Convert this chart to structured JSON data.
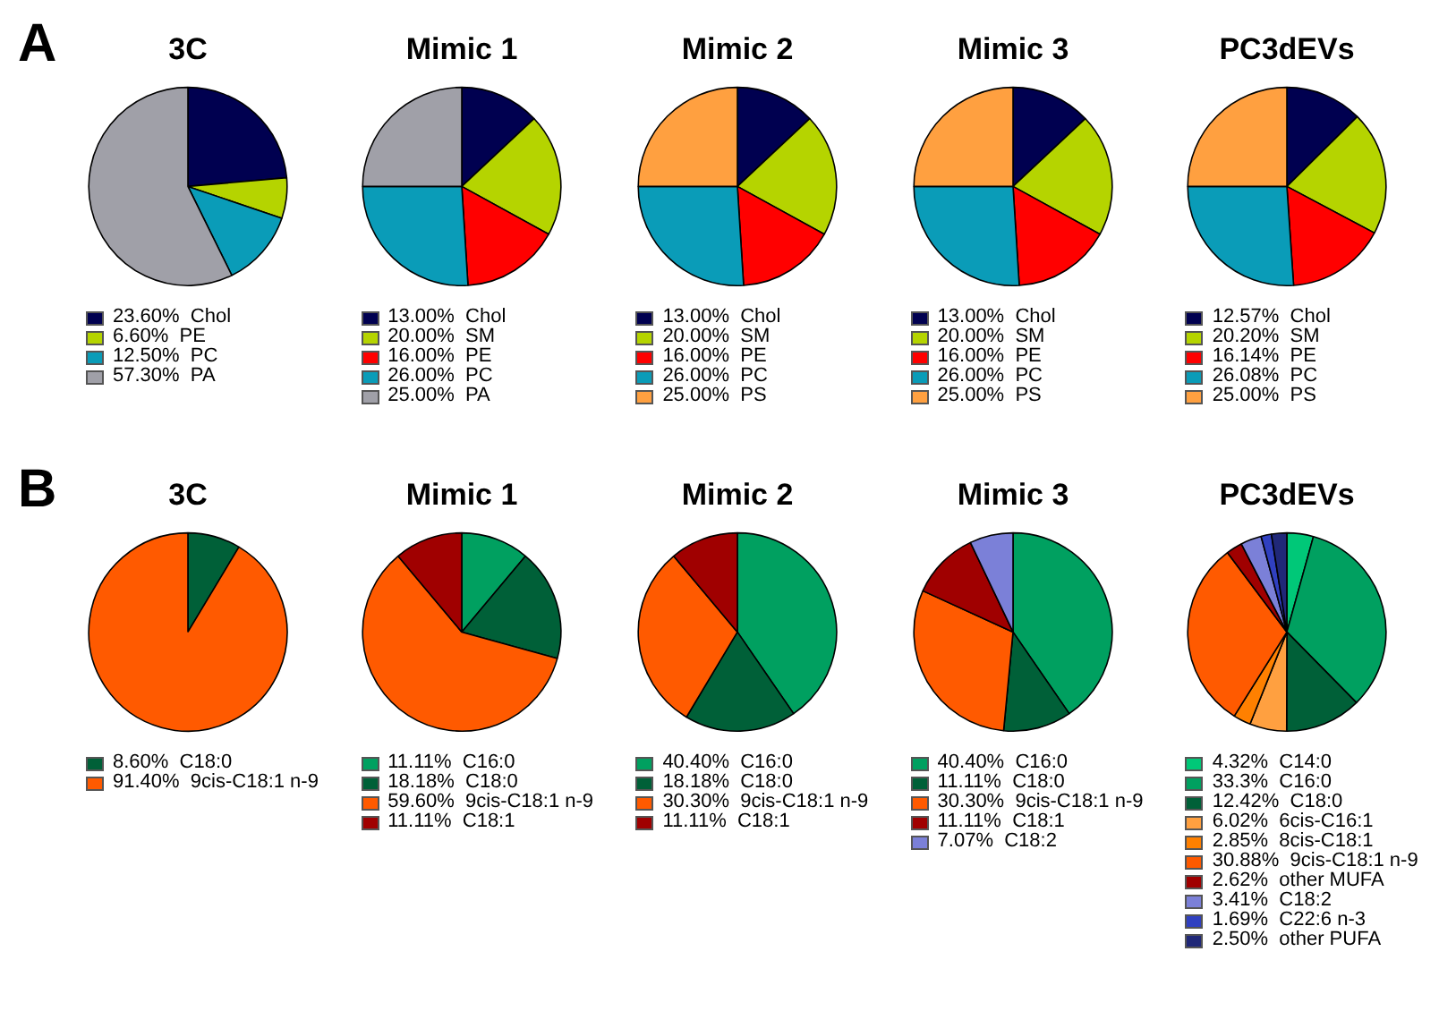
{
  "chart_data": [
    {
      "type": "pie",
      "title": "3C",
      "annotations": [
        "A"
      ],
      "legend": "bottom",
      "categories": [
        "Chol",
        "PE",
        "PC",
        "PA"
      ],
      "values": [
        23.6,
        6.6,
        12.5,
        57.3
      ],
      "value_labels": [
        "23.60%",
        "6.60%",
        "12.50%",
        "57.30%"
      ],
      "colors": [
        "#000050",
        "#b5d400",
        "#0a9cb8",
        "#a0a0a8"
      ]
    },
    {
      "type": "pie",
      "title": "Mimic 1",
      "legend": "bottom",
      "categories": [
        "Chol",
        "SM",
        "PE",
        "PC",
        "PA"
      ],
      "values": [
        13,
        20,
        16,
        26,
        25
      ],
      "value_labels": [
        "13.00%",
        "20.00%",
        "16.00%",
        "26.00%",
        "25.00%"
      ],
      "colors": [
        "#000050",
        "#b5d400",
        "#ff0000",
        "#0a9cb8",
        "#a0a0a8"
      ]
    },
    {
      "type": "pie",
      "title": "Mimic 2",
      "legend": "bottom",
      "categories": [
        "Chol",
        "SM",
        "PE",
        "PC",
        "PS"
      ],
      "values": [
        13,
        20,
        16,
        26,
        25
      ],
      "value_labels": [
        "13.00%",
        "20.00%",
        "16.00%",
        "26.00%",
        "25.00%"
      ],
      "colors": [
        "#000050",
        "#b5d400",
        "#ff0000",
        "#0a9cb8",
        "#ffa040"
      ]
    },
    {
      "type": "pie",
      "title": "Mimic 3",
      "legend": "bottom",
      "categories": [
        "Chol",
        "SM",
        "PE",
        "PC",
        "PS"
      ],
      "values": [
        13,
        20,
        16,
        26,
        25
      ],
      "value_labels": [
        "13.00%",
        "20.00%",
        "16.00%",
        "26.00%",
        "25.00%"
      ],
      "colors": [
        "#000050",
        "#b5d400",
        "#ff0000",
        "#0a9cb8",
        "#ffa040"
      ]
    },
    {
      "type": "pie",
      "title": "PC3dEVs",
      "legend": "bottom",
      "categories": [
        "Chol",
        "SM",
        "PE",
        "PC",
        "PS"
      ],
      "values": [
        12.57,
        20.2,
        16.14,
        26.08,
        25
      ],
      "value_labels": [
        "12.57%",
        "20.20%",
        "16.14%",
        "26.08%",
        "25.00%"
      ],
      "colors": [
        "#000050",
        "#b5d400",
        "#ff0000",
        "#0a9cb8",
        "#ffa040"
      ]
    },
    {
      "type": "pie",
      "title": "3C",
      "annotations": [
        "B"
      ],
      "legend": "bottom",
      "categories": [
        "C18:0",
        "9cis-C18:1 n-9"
      ],
      "values": [
        8.6,
        91.4
      ],
      "value_labels": [
        "8.60%",
        "91.40%"
      ],
      "colors": [
        "#006038",
        "#ff5a00"
      ]
    },
    {
      "type": "pie",
      "title": "Mimic 1",
      "legend": "bottom",
      "categories": [
        "C16:0",
        "C18:0",
        "9cis-C18:1 n-9",
        "C18:1"
      ],
      "values": [
        11.11,
        18.18,
        59.6,
        11.11
      ],
      "value_labels": [
        "11.11%",
        "18.18%",
        "59.60%",
        "11.11%"
      ],
      "colors": [
        "#00a060",
        "#006038",
        "#ff5a00",
        "#a00000"
      ]
    },
    {
      "type": "pie",
      "title": "Mimic 2",
      "legend": "bottom",
      "categories": [
        "C16:0",
        "C18:0",
        "9cis-C18:1 n-9",
        "C18:1"
      ],
      "values": [
        40.4,
        18.18,
        30.3,
        11.11
      ],
      "value_labels": [
        "40.40%",
        "18.18%",
        "30.30%",
        "11.11%"
      ],
      "colors": [
        "#00a060",
        "#006038",
        "#ff5a00",
        "#a00000"
      ]
    },
    {
      "type": "pie",
      "title": "Mimic 3",
      "legend": "bottom",
      "categories": [
        "C16:0",
        "C18:0",
        "9cis-C18:1 n-9",
        "C18:1",
        "C18:2"
      ],
      "values": [
        40.4,
        11.11,
        30.3,
        11.11,
        7.07
      ],
      "value_labels": [
        "40.40%",
        "11.11%",
        "30.30%",
        "11.11%",
        "7.07%"
      ],
      "colors": [
        "#00a060",
        "#006038",
        "#ff5a00",
        "#a00000",
        "#7b80d8"
      ]
    },
    {
      "type": "pie",
      "title": "PC3dEVs",
      "legend": "bottom",
      "categories": [
        "C14:0",
        "C16:0",
        "C18:0",
        "6cis-C16:1",
        "8cis-C18:1",
        "9cis-C18:1 n-9",
        "other MUFA",
        "C18:2",
        "C22:6 n-3",
        "other PUFA"
      ],
      "values": [
        4.32,
        33.3,
        12.42,
        6.02,
        2.85,
        30.88,
        2.62,
        3.41,
        1.69,
        2.5
      ],
      "value_labels": [
        "4.32%",
        "33.3%",
        "12.42%",
        "6.02%",
        "2.85%",
        "30.88%",
        "2.62%",
        "3.41%",
        "1.69%",
        "2.50%"
      ],
      "colors": [
        "#00c878",
        "#00a060",
        "#006038",
        "#ffa040",
        "#ff8000",
        "#ff5a00",
        "#a00000",
        "#7b80d8",
        "#3040c0",
        "#202878"
      ]
    }
  ]
}
